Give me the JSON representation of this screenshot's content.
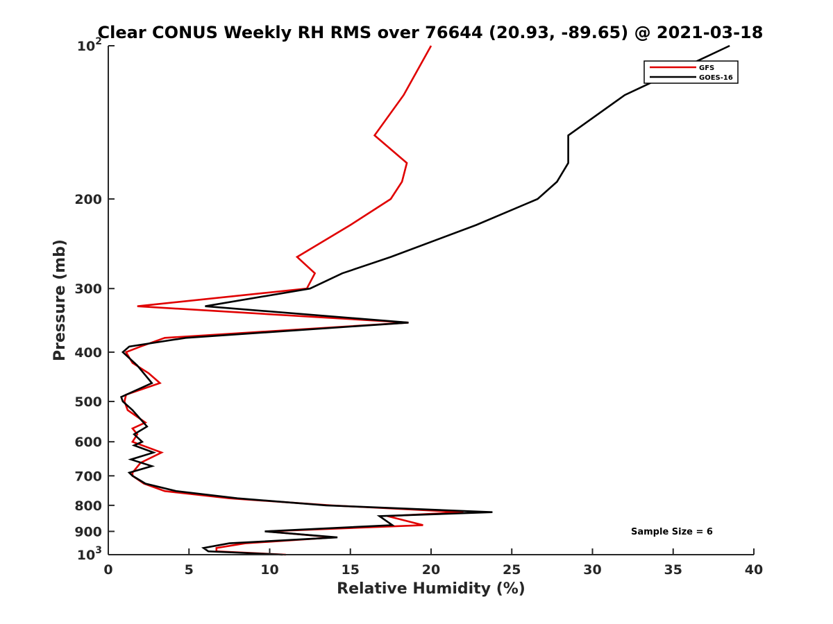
{
  "chart_data": {
    "type": "line",
    "title": "Clear CONUS Weekly RH RMS over 76644 (20.93, -89.65) @ 2021-03-18",
    "xlabel": "Relative Humidity (%)",
    "ylabel": "Pressure (mb)",
    "xlim": [
      0,
      40
    ],
    "ylim": [
      100,
      1000
    ],
    "yscale": "log",
    "y_reversed": true,
    "x_ticks": [
      0,
      5,
      10,
      15,
      20,
      25,
      30,
      35,
      40
    ],
    "x_tick_labels": [
      "0",
      "5",
      "10",
      "15",
      "20",
      "25",
      "30",
      "35",
      "40"
    ],
    "y_ticks": [
      100,
      200,
      300,
      400,
      500,
      600,
      700,
      800,
      900,
      1000
    ],
    "y_tick_labels": [
      {
        "base": "10",
        "exp": "2"
      },
      {
        "text": "200"
      },
      {
        "text": "300"
      },
      {
        "text": "400"
      },
      {
        "text": "500"
      },
      {
        "text": "600"
      },
      {
        "text": "700"
      },
      {
        "text": "800"
      },
      {
        "text": "900"
      },
      {
        "base": "10",
        "exp": "3"
      }
    ],
    "legend_position": "top-right",
    "annotation": "Sample Size = 6",
    "series": [
      {
        "name": "GFS",
        "color": "#e00000",
        "x": [
          20.0,
          18.3,
          16.5,
          18.5,
          18.2,
          17.5,
          15.0,
          11.7,
          12.8,
          12.3,
          1.8,
          18.6,
          3.5,
          2.0,
          1.1,
          1.5,
          2.5,
          3.2,
          1.1,
          1.0,
          1.2,
          2.3,
          1.5,
          1.8,
          1.5,
          3.3,
          2.0,
          1.5,
          1.5,
          2.2,
          3.5,
          7.5,
          13.8,
          22.0,
          17.3,
          19.5,
          9.8,
          14.0,
          8.5,
          6.7,
          6.7,
          11.0
        ],
        "y": [
          100,
          125,
          150,
          170,
          185,
          200,
          225,
          260,
          280,
          300,
          325,
          350,
          375,
          390,
          400,
          420,
          440,
          460,
          485,
          500,
          520,
          550,
          565,
          580,
          600,
          630,
          660,
          690,
          700,
          725,
          750,
          775,
          800,
          825,
          840,
          875,
          900,
          925,
          950,
          970,
          985,
          1000
        ]
      },
      {
        "name": "GOES-16",
        "color": "#000000",
        "x": [
          38.5,
          32.0,
          28.5,
          28.5,
          27.8,
          26.6,
          22.8,
          17.5,
          14.5,
          12.5,
          6.0,
          18.6,
          4.8,
          1.3,
          0.9,
          1.8,
          2.7,
          0.8,
          0.9,
          1.5,
          2.4,
          1.6,
          2.1,
          1.6,
          2.8,
          1.4,
          2.7,
          1.3,
          1.5,
          2.3,
          4.2,
          8.0,
          13.5,
          23.8,
          16.8,
          17.6,
          9.7,
          14.2,
          7.5,
          5.9,
          6.2,
          10.8
        ],
        "y": [
          100,
          125,
          150,
          170,
          185,
          200,
          225,
          260,
          280,
          300,
          325,
          350,
          375,
          390,
          400,
          425,
          460,
          490,
          500,
          520,
          560,
          580,
          600,
          610,
          630,
          650,
          670,
          690,
          700,
          725,
          750,
          775,
          800,
          825,
          840,
          875,
          900,
          925,
          950,
          970,
          985,
          1000
        ]
      }
    ]
  }
}
